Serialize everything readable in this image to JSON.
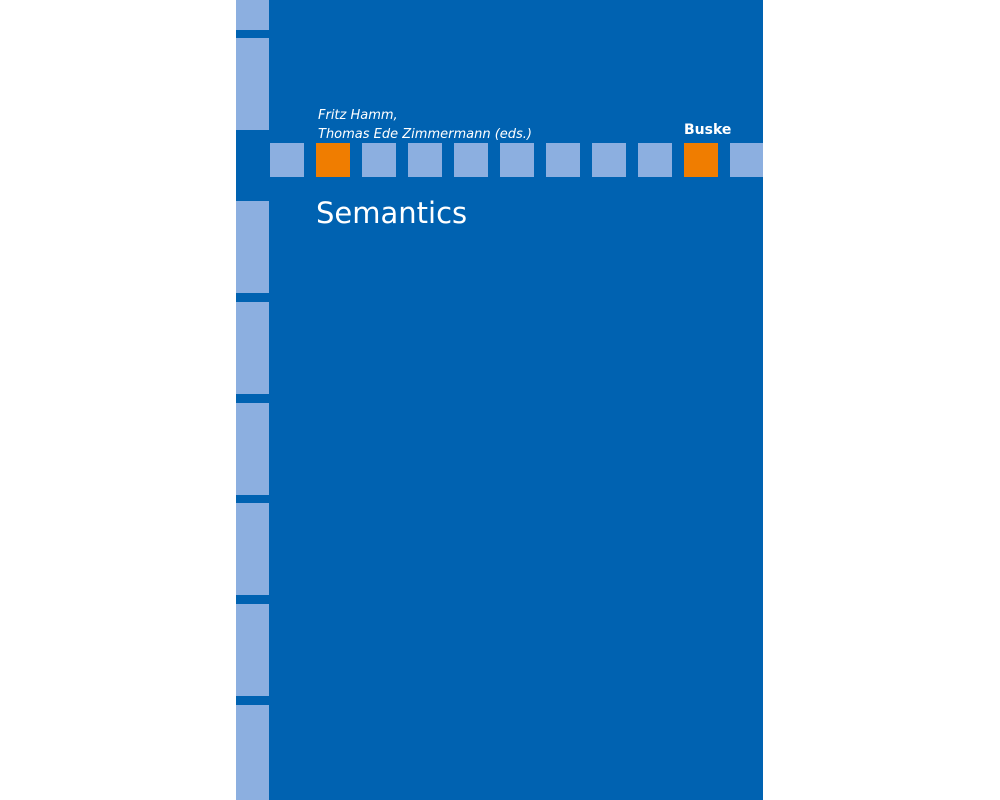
{
  "cover": {
    "authors": [
      "Fritz Hamm,",
      "Thomas Ede Zimmermann (eds.)"
    ],
    "publisher": "Buske",
    "title": "Semantics",
    "colors": {
      "background": "#0062b1",
      "light_block": "#8cafe0",
      "accent": "#f07d00"
    }
  }
}
